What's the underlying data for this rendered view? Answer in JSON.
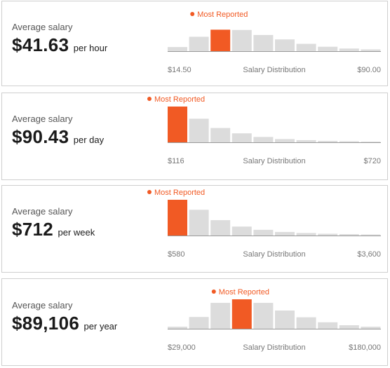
{
  "colors": {
    "highlight": "#f15a24",
    "bar": "#dcdcdc",
    "baseline": "#999999",
    "text_secondary": "#777777"
  },
  "most_reported_label": "Most Reported",
  "distribution_label": "Salary Distribution",
  "cards": [
    {
      "avg_label": "Average salary",
      "amount": "$41.63",
      "unit": "per hour",
      "axis_min": "$14.50",
      "axis_max": "$90.00"
    },
    {
      "avg_label": "Average salary",
      "amount": "$90.43",
      "unit": "per day",
      "axis_min": "$116",
      "axis_max": "$720"
    },
    {
      "avg_label": "Average salary",
      "amount": "$712",
      "unit": "per week",
      "axis_min": "$580",
      "axis_max": "$3,600"
    },
    {
      "avg_label": "Average salary",
      "amount": "$89,106",
      "unit": "per year",
      "axis_min": "$29,000",
      "axis_max": "$180,000"
    }
  ],
  "chart_data": [
    {
      "type": "bar",
      "title": "Salary Distribution",
      "x_range": [
        "$14.50",
        "$90.00"
      ],
      "values": [
        0.14,
        0.49,
        0.73,
        0.72,
        0.55,
        0.4,
        0.25,
        0.15,
        0.09,
        0.06
      ],
      "most_reported_index": 2,
      "annotation": "Most Reported"
    },
    {
      "type": "bar",
      "title": "Salary Distribution",
      "x_range": [
        "$116",
        "$720"
      ],
      "values": [
        1.0,
        0.66,
        0.4,
        0.25,
        0.15,
        0.09,
        0.06,
        0.04,
        0.03,
        0.02
      ],
      "most_reported_index": 0,
      "annotation": "Most Reported"
    },
    {
      "type": "bar",
      "title": "Salary Distribution",
      "x_range": [
        "$580",
        "$3,600"
      ],
      "values": [
        1.0,
        0.72,
        0.43,
        0.25,
        0.16,
        0.1,
        0.07,
        0.05,
        0.04,
        0.03
      ],
      "most_reported_index": 0,
      "annotation": "Most Reported"
    },
    {
      "type": "bar",
      "title": "Salary Distribution",
      "x_range": [
        "$29,000",
        "$180,000"
      ],
      "values": [
        0.07,
        0.4,
        0.88,
        1.0,
        0.88,
        0.62,
        0.39,
        0.22,
        0.12,
        0.07
      ],
      "most_reported_index": 3,
      "annotation": "Most Reported"
    }
  ]
}
